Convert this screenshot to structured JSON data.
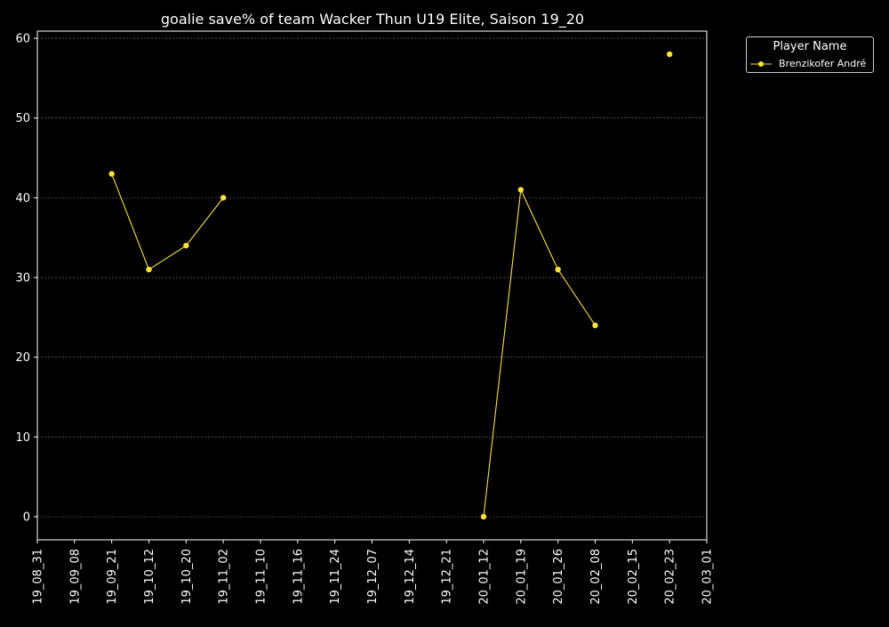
{
  "chart_data": {
    "type": "line",
    "title": "goalie save% of team Wacker Thun U19 Elite, Saison 19_20",
    "xlabel": "",
    "ylabel": "",
    "categories": [
      "19_08_31",
      "19_09_08",
      "19_09_21",
      "19_10_12",
      "19_10_20",
      "19_11_02",
      "19_11_10",
      "19_11_16",
      "19_11_24",
      "19_12_07",
      "19_12_14",
      "19_12_21",
      "20_01_12",
      "20_01_19",
      "20_01_26",
      "20_02_08",
      "20_02_15",
      "20_02_23",
      "20_03_01"
    ],
    "ylim": [
      -2.9,
      60.9
    ],
    "yticks": [
      0,
      10,
      20,
      30,
      40,
      50,
      60
    ],
    "grid": true,
    "legend": {
      "title": "Player Name",
      "placement": "outside top-right"
    },
    "series": [
      {
        "name": "Brenzikofer André",
        "color": "#ffe234",
        "values": [
          null,
          null,
          43,
          31,
          34,
          40,
          null,
          null,
          null,
          null,
          null,
          null,
          0,
          41,
          31,
          24,
          null,
          58,
          null
        ]
      }
    ]
  },
  "colors": {
    "background": "#000000",
    "axis": "#ffffff",
    "grid": "#808080",
    "series": "#ffe234"
  }
}
